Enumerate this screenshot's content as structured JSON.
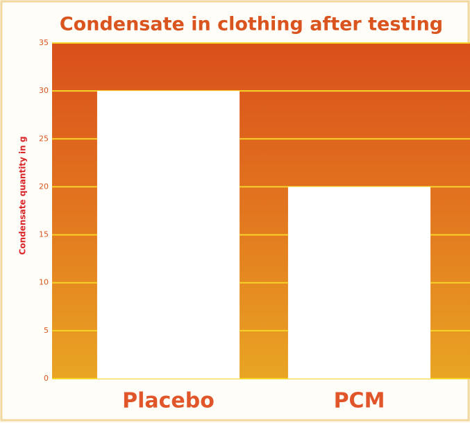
{
  "chart_data": {
    "type": "bar",
    "title": "Condensate in clothing after testing",
    "y_label": "Condensate quantity in g",
    "categories": [
      "Placebo",
      "PCM"
    ],
    "values": [
      30,
      20
    ],
    "color": "#ffffff",
    "ylim": [
      0,
      35
    ],
    "yticks": [
      0,
      5,
      10,
      15,
      20,
      25,
      30,
      35
    ],
    "grid": true,
    "grid_color": "#f7d528"
  }
}
